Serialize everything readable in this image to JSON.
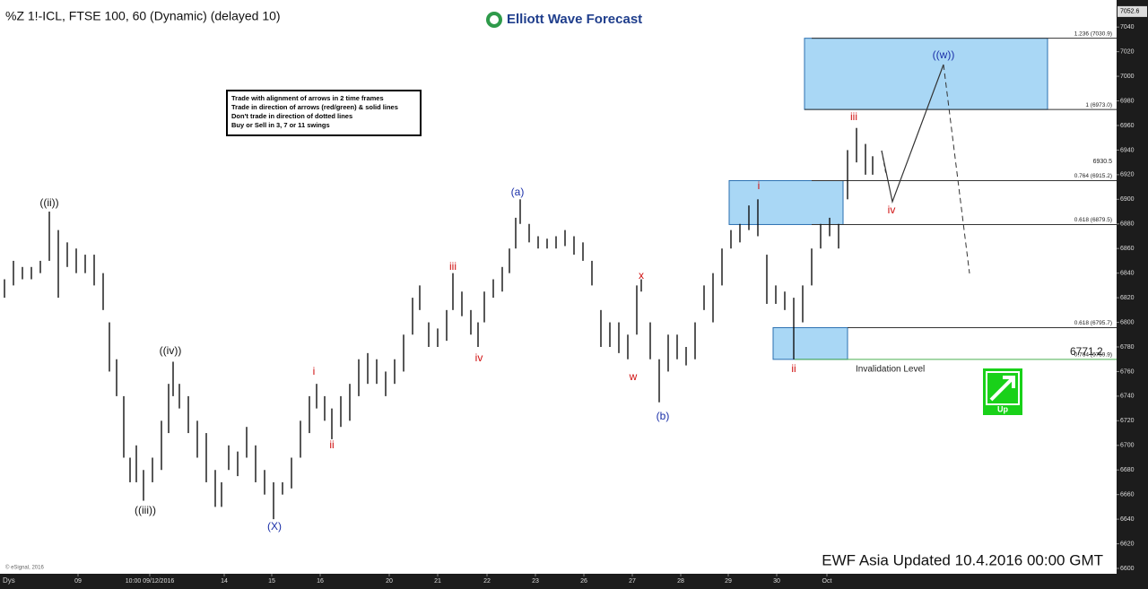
{
  "chart_data": {
    "type": "ohlc",
    "title": "%Z 1!-ICL, FTSE 100, 60 (Dynamic) (delayed 10)",
    "logo": "Elliott Wave Forecast",
    "rules": [
      "Trade with alignment of arrows in 2 time frames",
      "Trade in direction of arrows (red/green) & solid lines",
      "Don't trade in direction of dotted lines",
      "Buy or Sell in 3, 7 or 11 swings"
    ],
    "footer": "EWF Asia Updated 10.4.2016 00:00 GMT",
    "copyright": "© eSignal, 2016",
    "interval_label": "Dys",
    "invalidation": "Invalidation Level",
    "signal": "Up",
    "last_price": 7052.6,
    "marker_label": "6930.5",
    "invalidation_price": "6771.2",
    "color": "#111111",
    "x": [
      1,
      3,
      5,
      7,
      9,
      11,
      13,
      15,
      17,
      19,
      21,
      23,
      24.4,
      26,
      27.6,
      29,
      30.4,
      32,
      34,
      36,
      37.6,
      38.6,
      40,
      42,
      44,
      46,
      48,
      49.4,
      51,
      53,
      55,
      57,
      59,
      61,
      63,
      65,
      67,
      69,
      70.6,
      72.4,
      74,
      76,
      78,
      80,
      82,
      84,
      86,
      88,
      90,
      92,
      93.6,
      95.6,
      97.6,
      99.6,
      101,
      103,
      105,
      106.6,
      108,
      110,
      112,
      113.6,
      115,
      116,
      118,
      120,
      122,
      124,
      126,
      128,
      130,
      132,
      134,
      136,
      138,
      140,
      142,
      143,
      145,
      147,
      149,
      151,
      153,
      155,
      157,
      159,
      161,
      163,
      165,
      167,
      169,
      171,
      173,
      175,
      177,
      179,
      181,
      183,
      185,
      187,
      189,
      191,
      193,
      194.6
    ],
    "high": [
      6835,
      6850,
      6845,
      6845,
      6850,
      6890,
      6875,
      6865,
      6860,
      6855,
      6855,
      6840,
      6800,
      6770,
      6740,
      6690,
      6700,
      6680,
      6690,
      6720,
      6750,
      6768,
      6750,
      6740,
      6720,
      6710,
      6680,
      6670,
      6700,
      6695,
      6715,
      6700,
      6680,
      6670,
      6670,
      6690,
      6720,
      6740,
      6750,
      6740,
      6730,
      6740,
      6750,
      6770,
      6775,
      6770,
      6760,
      6770,
      6790,
      6820,
      6830,
      6800,
      6795,
      6810,
      6840,
      6825,
      6810,
      6800,
      6825,
      6835,
      6845,
      6860,
      6885,
      6900,
      6880,
      6870,
      6868,
      6870,
      6875,
      6870,
      6865,
      6850,
      6810,
      6800,
      6800,
      6790,
      6830,
      6835,
      6800,
      6770,
      6790,
      6790,
      6780,
      6800,
      6830,
      6840,
      6860,
      6875,
      6880,
      6895,
      6900,
      6855,
      6830,
      6825,
      6820,
      6830,
      6860,
      6880,
      6885,
      6880,
      6940,
      6958,
      6945,
      6935
    ],
    "low": [
      6820,
      6830,
      6835,
      6835,
      6840,
      6850,
      6820,
      6845,
      6840,
      6840,
      6830,
      6810,
      6760,
      6740,
      6690,
      6670,
      6670,
      6655,
      6670,
      6680,
      6710,
      6740,
      6730,
      6710,
      6690,
      6670,
      6650,
      6650,
      6680,
      6675,
      6690,
      6670,
      6660,
      6640,
      6660,
      6665,
      6690,
      6710,
      6730,
      6720,
      6705,
      6715,
      6720,
      6740,
      6750,
      6750,
      6740,
      6750,
      6760,
      6790,
      6810,
      6780,
      6780,
      6785,
      6810,
      6805,
      6790,
      6780,
      6800,
      6820,
      6825,
      6840,
      6860,
      6880,
      6865,
      6860,
      6860,
      6860,
      6862,
      6855,
      6850,
      6830,
      6780,
      6780,
      6775,
      6770,
      6790,
      6825,
      6770,
      6735,
      6760,
      6770,
      6765,
      6770,
      6810,
      6800,
      6830,
      6860,
      6865,
      6875,
      6870,
      6815,
      6815,
      6810,
      6770,
      6800,
      6830,
      6860,
      6870,
      6860,
      6900,
      6930,
      6920,
      6920
    ],
    "xlim": [
      0,
      249
    ],
    "xticks": [
      {
        "value": 17.4,
        "label": "09"
      },
      {
        "value": 33.4,
        "label": "10:00 09/12/2016"
      },
      {
        "value": 50,
        "label": "14"
      },
      {
        "value": 60.6,
        "label": "15"
      },
      {
        "value": 71.4,
        "label": "16"
      },
      {
        "value": 86.8,
        "label": "20"
      },
      {
        "value": 97.6,
        "label": "21"
      },
      {
        "value": 108.6,
        "label": "22"
      },
      {
        "value": 119.4,
        "label": "23"
      },
      {
        "value": 130.2,
        "label": "26"
      },
      {
        "value": 141,
        "label": "27"
      },
      {
        "value": 151.8,
        "label": "28"
      },
      {
        "value": 162.4,
        "label": "29"
      },
      {
        "value": 173.2,
        "label": "30"
      },
      {
        "value": 184.4,
        "label": "Oct"
      }
    ],
    "ylim": [
      6592,
      7062
    ],
    "yticks": [
      6600,
      6620,
      6640,
      6660,
      6680,
      6700,
      6720,
      6740,
      6760,
      6780,
      6800,
      6820,
      6840,
      6860,
      6880,
      6900,
      6920,
      6940,
      6960,
      6980,
      7000,
      7020,
      7040
    ],
    "levels": [
      {
        "value": 7030.9,
        "label": "1.236 (7030.9)"
      },
      {
        "value": 6973.0,
        "label": "1 (6973.0)"
      },
      {
        "value": 6915.2,
        "label": "0.764 (6915.2)"
      },
      {
        "value": 6879.5,
        "label": "0.618 (6879.5)"
      },
      {
        "value": 6795.7,
        "label": "0.618 (6795.7)"
      },
      {
        "value": 6769.9,
        "label": "0.764 (6769.9)"
      }
    ],
    "annotations": [
      {
        "text": "((ii))",
        "color": "#111111"
      },
      {
        "text": "((iii))",
        "color": "#111111"
      },
      {
        "text": "((iv))",
        "color": "#111111"
      },
      {
        "text": "(X)",
        "color": "#1a2fa8"
      },
      {
        "text": "i",
        "color": "#d01010"
      },
      {
        "text": "ii",
        "color": "#d01010"
      },
      {
        "text": "iii",
        "color": "#d01010"
      },
      {
        "text": "iv",
        "color": "#d01010"
      },
      {
        "text": "(a)",
        "color": "#1a2fa8"
      },
      {
        "text": "w",
        "color": "#d01010"
      },
      {
        "text": "x",
        "color": "#d01010"
      },
      {
        "text": "(b)",
        "color": "#1a2fa8"
      },
      {
        "text": "i",
        "color": "#d01010"
      },
      {
        "text": "ii",
        "color": "#d01010"
      },
      {
        "text": "iii",
        "color": "#d01010"
      },
      {
        "text": "iv",
        "color": "#d01010"
      },
      {
        "text": "((w))",
        "color": "#1a2fa8"
      }
    ]
  }
}
